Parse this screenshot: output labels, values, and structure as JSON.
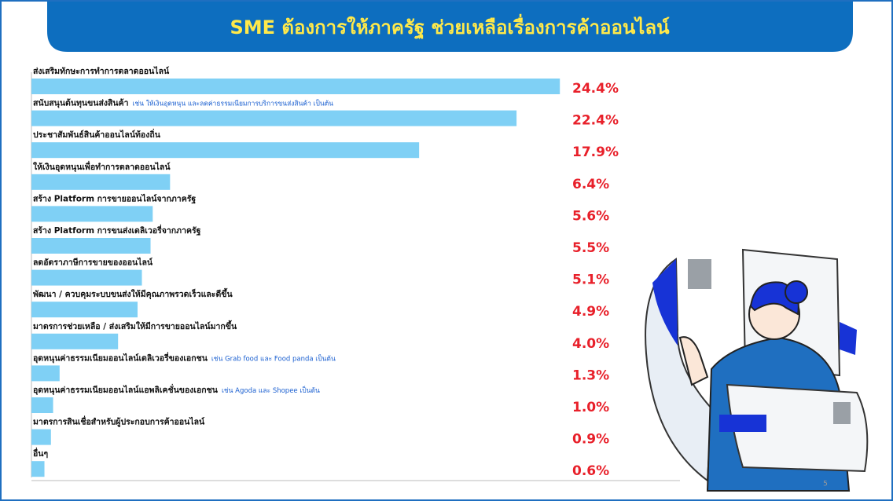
{
  "chart_data": {
    "type": "bar",
    "orientation": "horizontal",
    "title": "SME ต้องการให้ภาครัฐ ช่วยเหลือเรื่องการค้าออนไลน์",
    "categories": [
      "ส่งเสริมทักษะการทำการตลาดออนไลน์",
      "สนับสนุนต้นทุนขนส่งสินค้า",
      "ประชาสัมพันธ์สินค้าออนไลน์ท้องถิ่น",
      "ให้เงินอุดหนุนเพื่อทำการตลาดออนไลน์",
      "สร้าง Platform การขายออนไลน์จากภาครัฐ",
      "สร้าง Platform การขนส่งเดลิเวอรี่จากภาครัฐ",
      "ลดอัตราภาษีการขายของออนไลน์",
      "พัฒนา / ควบคุมระบบขนส่งให้มีคุณภาพรวดเร็วและดีขึ้น",
      "มาตรการช่วยเหลือ / ส่งเสริมให้มีการขายออนไลน์มากขึ้น",
      "อุดหนุนค่าธรรมเนียมออนไลน์เดลิเวอรี่ของเอกชน",
      "อุดหนุนค่าธรรมเนียมออนไลน์แอพลิเคชั่นของเอกชน",
      "มาตรการสินเชื่อสำหรับผู้ประกอบการค้าออนไลน์",
      "อื่นๆ"
    ],
    "category_notes": [
      null,
      "เช่น ให้เงินอุดหนุน และลดค่าธรรมเนียมการบริการขนส่งสินค้า เป็นต้น",
      null,
      null,
      null,
      null,
      null,
      null,
      null,
      "เช่น Grab food และ Food panda เป็นต้น",
      "เช่น Agoda และ Shopee เป็นต้น",
      null,
      null
    ],
    "values": [
      24.4,
      22.4,
      17.9,
      6.4,
      5.6,
      5.5,
      5.1,
      4.9,
      4.0,
      1.3,
      1.0,
      0.9,
      0.6
    ],
    "value_labels": [
      "24.4%",
      "22.4%",
      "17.9%",
      "6.4%",
      "5.6%",
      "5.5%",
      "5.1%",
      "4.9%",
      "4.0%",
      "1.3%",
      "1.0%",
      "0.9%",
      "0.6%"
    ],
    "color": "#7fd0f5",
    "value_label_color": "#e8202a",
    "page_number": "5"
  }
}
